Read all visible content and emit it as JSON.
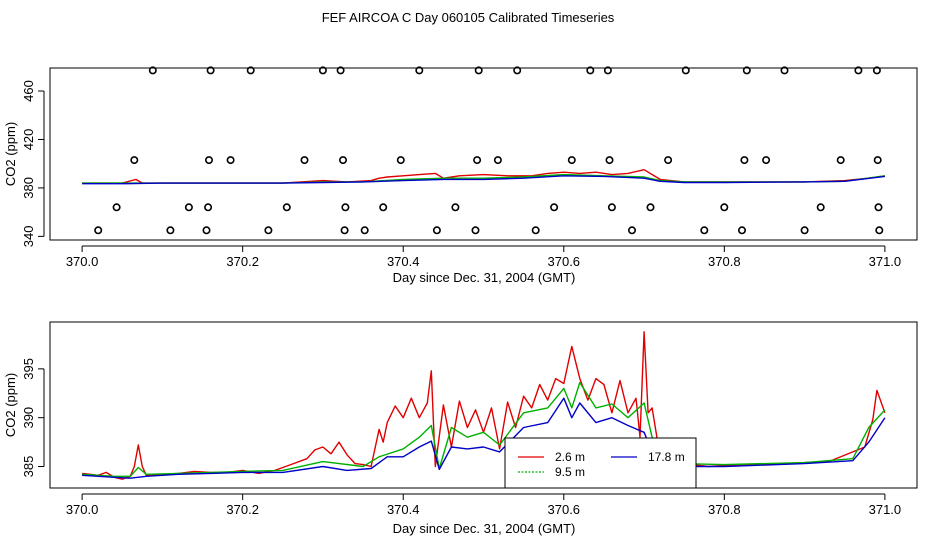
{
  "title": "FEF AIRCOA C  Day 060105  Calibrated Timeseries",
  "chart_data": [
    {
      "type": "line",
      "xlabel": "Day since Dec. 31, 2004 (GMT)",
      "ylabel": "CO2 (ppm)",
      "xlim": [
        369.96,
        371.04
      ],
      "ylim": [
        337,
        479
      ],
      "xticks": [
        370.0,
        370.2,
        370.4,
        370.6,
        370.8,
        371.0
      ],
      "xtick_labels": [
        "370.0",
        "370.2",
        "370.4",
        "370.6",
        "370.8",
        "371.0"
      ],
      "yticks": [
        340,
        380,
        420,
        460
      ],
      "ytick_labels": [
        "340",
        "380",
        "420",
        "460"
      ],
      "grid": false,
      "legend": "none",
      "series": [
        {
          "color": "#e00000",
          "x": [
            370.0,
            370.05,
            370.067,
            370.075,
            370.1,
            370.15,
            370.2,
            370.25,
            370.3,
            370.33,
            370.36,
            370.37,
            370.38,
            370.4,
            370.42,
            370.44,
            370.45,
            370.47,
            370.5,
            370.53,
            370.56,
            370.58,
            370.6,
            370.62,
            370.64,
            370.66,
            370.68,
            370.7,
            370.72,
            370.75,
            370.8,
            370.85,
            370.9,
            370.95,
            370.98,
            371.0
          ],
          "y": [
            384,
            384,
            387,
            384,
            384,
            384,
            384,
            384,
            386,
            385,
            386,
            388,
            389,
            390,
            391,
            392,
            388,
            390,
            391,
            390,
            390,
            392,
            393,
            392,
            393,
            391,
            392,
            395,
            387,
            385,
            385,
            385,
            385,
            386,
            388,
            390
          ]
        },
        {
          "color": "#00b000",
          "x": [
            370.0,
            370.05,
            370.1,
            370.2,
            370.25,
            370.3,
            370.35,
            370.4,
            370.45,
            370.5,
            370.55,
            370.6,
            370.65,
            370.7,
            370.72,
            370.75,
            370.8,
            370.9,
            370.95,
            371.0
          ],
          "y": [
            384,
            384,
            384,
            384,
            384,
            385,
            385,
            387,
            388,
            388,
            389,
            391,
            390,
            389,
            386,
            385,
            385,
            385,
            385.5,
            390
          ]
        },
        {
          "color": "#0000c8",
          "x": [
            370.0,
            370.05,
            370.1,
            370.2,
            370.25,
            370.3,
            370.35,
            370.4,
            370.45,
            370.5,
            370.55,
            370.6,
            370.65,
            370.7,
            370.72,
            370.75,
            370.8,
            370.9,
            370.95,
            371.0
          ],
          "y": [
            383.5,
            383.5,
            384,
            384,
            384,
            384.5,
            385,
            386,
            387,
            387,
            388,
            390,
            389.5,
            388,
            385.5,
            384.5,
            384.5,
            385,
            385.5,
            389.5
          ]
        }
      ],
      "markers": {
        "symbol": "circle-open",
        "x": [
          370.02,
          370.043,
          370.065,
          370.088,
          370.11,
          370.133,
          370.155,
          370.157,
          370.158,
          370.16,
          370.185,
          370.21,
          370.232,
          370.255,
          370.277,
          370.3,
          370.322,
          370.325,
          370.327,
          370.328,
          370.352,
          370.375,
          370.397,
          370.42,
          370.442,
          370.465,
          370.49,
          370.492,
          370.494,
          370.518,
          370.542,
          370.565,
          370.588,
          370.61,
          370.633,
          370.655,
          370.657,
          370.66,
          370.685,
          370.708,
          370.73,
          370.752,
          370.775,
          370.8,
          370.822,
          370.825,
          370.828,
          370.852,
          370.875,
          370.9,
          370.92,
          370.945,
          370.967,
          370.99,
          370.991,
          370.992,
          370.993
        ],
        "y": [
          345,
          364,
          403,
          477,
          345,
          364,
          345,
          364,
          403,
          477,
          403,
          477,
          345,
          364,
          403,
          477,
          477,
          403,
          345,
          364,
          345,
          364,
          403,
          477,
          345,
          364,
          345,
          403,
          477,
          403,
          477,
          345,
          364,
          403,
          477,
          477,
          403,
          364,
          345,
          364,
          403,
          477,
          345,
          364,
          345,
          403,
          477,
          403,
          477,
          345,
          364,
          403,
          477,
          477,
          403,
          364,
          345
        ]
      }
    },
    {
      "type": "line",
      "xlabel": "Day since Dec. 31, 2004 (GMT)",
      "ylabel": "CO2 (ppm)",
      "xlim": [
        369.96,
        371.04
      ],
      "ylim": [
        382.8,
        399.8
      ],
      "xticks": [
        370.0,
        370.2,
        370.4,
        370.6,
        370.8,
        371.0
      ],
      "xtick_labels": [
        "370.0",
        "370.2",
        "370.4",
        "370.6",
        "370.8",
        "371.0"
      ],
      "yticks": [
        385,
        390,
        395
      ],
      "ytick_labels": [
        "385",
        "390",
        "395"
      ],
      "grid": false,
      "legend": "bottom-center",
      "series": [
        {
          "name": "2.6 m",
          "color": "#e00000",
          "x": [
            370.0,
            370.01,
            370.02,
            370.03,
            370.04,
            370.05,
            370.06,
            370.065,
            370.07,
            370.075,
            370.08,
            370.1,
            370.12,
            370.14,
            370.16,
            370.18,
            370.2,
            370.22,
            370.24,
            370.26,
            370.28,
            370.29,
            370.3,
            370.31,
            370.32,
            370.33,
            370.34,
            370.35,
            370.36,
            370.37,
            370.375,
            370.38,
            370.39,
            370.4,
            370.41,
            370.42,
            370.43,
            370.435,
            370.44,
            370.45,
            370.46,
            370.47,
            370.48,
            370.49,
            370.5,
            370.51,
            370.52,
            370.53,
            370.54,
            370.55,
            370.56,
            370.57,
            370.58,
            370.59,
            370.6,
            370.61,
            370.62,
            370.63,
            370.64,
            370.65,
            370.66,
            370.67,
            370.68,
            370.69,
            370.695,
            370.7,
            370.705,
            370.71,
            370.72,
            370.73,
            370.75,
            370.78,
            370.8,
            370.85,
            370.9,
            370.93,
            370.96,
            370.975,
            370.985,
            370.99,
            371.0
          ],
          "y": [
            384.3,
            384.2,
            384.1,
            384.4,
            383.9,
            383.7,
            384.0,
            385.0,
            387.2,
            385.0,
            384.1,
            384.2,
            384.3,
            384.5,
            384.4,
            384.4,
            384.6,
            384.3,
            384.6,
            385.2,
            385.8,
            386.7,
            387.0,
            386.3,
            387.5,
            386.2,
            385.3,
            385.2,
            385.0,
            388.8,
            387.5,
            389.5,
            391.2,
            390.0,
            392.0,
            390.0,
            391.5,
            394.8,
            385.0,
            391.3,
            387.0,
            391.7,
            389.0,
            390.8,
            388.5,
            391.0,
            386.8,
            391.6,
            389.0,
            392.2,
            391.0,
            393.4,
            391.8,
            394.0,
            393.5,
            397.3,
            394.0,
            391.8,
            394.0,
            393.4,
            390.5,
            393.8,
            390.5,
            392.0,
            388.0,
            398.8,
            390.5,
            391.0,
            386.0,
            385.2,
            385.3,
            385.0,
            385.1,
            385.2,
            385.4,
            385.5,
            386.5,
            387.0,
            389.8,
            392.8,
            390.5
          ]
        },
        {
          "name": "9.5 m",
          "color": "#00b000",
          "x": [
            370.0,
            370.04,
            370.06,
            370.07,
            370.08,
            370.12,
            370.16,
            370.2,
            370.25,
            370.3,
            370.35,
            370.37,
            370.4,
            370.42,
            370.435,
            370.445,
            370.46,
            370.48,
            370.5,
            370.52,
            370.55,
            370.58,
            370.6,
            370.61,
            370.62,
            370.64,
            370.66,
            370.68,
            370.7,
            370.71,
            370.72,
            370.74,
            370.8,
            370.9,
            370.96,
            370.98,
            371.0
          ],
          "y": [
            384.2,
            384.0,
            384.0,
            384.9,
            384.2,
            384.3,
            384.4,
            384.5,
            384.6,
            385.5,
            385.0,
            386.0,
            386.8,
            388.0,
            389.2,
            384.8,
            389.0,
            388.0,
            388.5,
            387.2,
            390.5,
            391.0,
            393.0,
            391.0,
            393.6,
            391.0,
            391.4,
            390.0,
            391.5,
            388.0,
            386.0,
            385.3,
            385.2,
            385.4,
            385.8,
            389.0,
            390.8
          ]
        },
        {
          "name": "17.8 m",
          "color": "#0000c8",
          "x": [
            370.0,
            370.04,
            370.06,
            370.08,
            370.12,
            370.16,
            370.2,
            370.25,
            370.3,
            370.33,
            370.36,
            370.38,
            370.4,
            370.42,
            370.435,
            370.445,
            370.46,
            370.48,
            370.5,
            370.52,
            370.55,
            370.58,
            370.6,
            370.61,
            370.62,
            370.64,
            370.66,
            370.68,
            370.7,
            370.71,
            370.72,
            370.74,
            370.8,
            370.9,
            370.96,
            370.98,
            371.0
          ],
          "y": [
            384.1,
            383.9,
            383.8,
            384.0,
            384.2,
            384.3,
            384.4,
            384.4,
            385.0,
            384.6,
            384.8,
            386.0,
            386.0,
            387.0,
            387.6,
            384.7,
            387.0,
            386.8,
            387.0,
            386.5,
            389.0,
            389.5,
            392.0,
            390.0,
            391.5,
            389.5,
            390.0,
            389.2,
            388.5,
            386.5,
            385.5,
            385.0,
            385.0,
            385.3,
            385.6,
            387.5,
            390.0
          ]
        }
      ]
    }
  ]
}
